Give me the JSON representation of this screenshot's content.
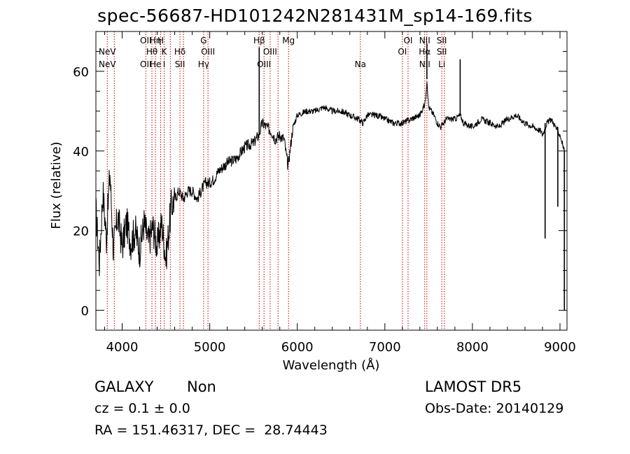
{
  "chart_data": {
    "type": "line",
    "title": "spec-56687-HD101242N281431M_sp14-169.fits",
    "xlabel": "Wavelength (Å)",
    "ylabel": "Flux (relative)",
    "xlim": [
      3700,
      9080
    ],
    "ylim": [
      -5,
      70
    ],
    "xticks": [
      4000,
      5000,
      6000,
      7000,
      8000,
      9000
    ],
    "yticks": [
      0,
      20,
      40,
      60
    ],
    "grid": false,
    "series": [
      {
        "color": "#000000",
        "points": [
          [
            3700,
            25
          ],
          [
            3740,
            12
          ],
          [
            3780,
            30
          ],
          [
            3820,
            18
          ],
          [
            3860,
            35
          ],
          [
            3900,
            15
          ],
          [
            3950,
            24
          ],
          [
            4000,
            16
          ],
          [
            4050,
            22
          ],
          [
            4100,
            17
          ],
          [
            4150,
            20
          ],
          [
            4200,
            15
          ],
          [
            4250,
            22
          ],
          [
            4300,
            17
          ],
          [
            4350,
            21
          ],
          [
            4400,
            16
          ],
          [
            4450,
            22
          ],
          [
            4500,
            13
          ],
          [
            4560,
            26
          ],
          [
            4600,
            28
          ],
          [
            4650,
            30
          ],
          [
            4700,
            28
          ],
          [
            4750,
            30
          ],
          [
            4800,
            30
          ],
          [
            4860,
            28
          ],
          [
            4900,
            30
          ],
          [
            4950,
            32
          ],
          [
            5000,
            32
          ],
          [
            5050,
            33
          ],
          [
            5100,
            35
          ],
          [
            5200,
            37
          ],
          [
            5300,
            38
          ],
          [
            5400,
            41
          ],
          [
            5500,
            42
          ],
          [
            5560,
            44
          ],
          [
            5600,
            47
          ],
          [
            5650,
            46
          ],
          [
            5700,
            45
          ],
          [
            5750,
            43
          ],
          [
            5800,
            44
          ],
          [
            5850,
            43
          ],
          [
            5893,
            36
          ],
          [
            5950,
            46
          ],
          [
            6000,
            49
          ],
          [
            6100,
            50
          ],
          [
            6200,
            50
          ],
          [
            6300,
            51
          ],
          [
            6400,
            50
          ],
          [
            6500,
            50
          ],
          [
            6600,
            49
          ],
          [
            6700,
            48
          ],
          [
            6750,
            47
          ],
          [
            6800,
            49
          ],
          [
            6900,
            49
          ],
          [
            7000,
            48
          ],
          [
            7100,
            47
          ],
          [
            7200,
            47
          ],
          [
            7300,
            48
          ],
          [
            7400,
            49
          ],
          [
            7460,
            52
          ],
          [
            7480,
            58
          ],
          [
            7500,
            51
          ],
          [
            7560,
            49
          ],
          [
            7600,
            47
          ],
          [
            7640,
            46
          ],
          [
            7700,
            48
          ],
          [
            7750,
            48
          ],
          [
            7800,
            48
          ],
          [
            7860,
            49
          ],
          [
            7900,
            47
          ],
          [
            8000,
            46
          ],
          [
            8100,
            48
          ],
          [
            8200,
            47
          ],
          [
            8300,
            46
          ],
          [
            8400,
            48
          ],
          [
            8500,
            49
          ],
          [
            8600,
            47
          ],
          [
            8700,
            46
          ],
          [
            8780,
            45
          ],
          [
            8800,
            44
          ],
          [
            8850,
            47
          ],
          [
            8900,
            48
          ],
          [
            8950,
            46
          ],
          [
            9000,
            44
          ],
          [
            9050,
            40
          ]
        ]
      }
    ],
    "spikes": [
      {
        "x": 5565,
        "y": 66
      },
      {
        "x": 7480,
        "y": 67
      },
      {
        "x": 7860,
        "y": 63
      },
      {
        "x": 8830,
        "y": 18
      },
      {
        "x": 8975,
        "y": 26
      },
      {
        "x": 9050,
        "y": 0
      }
    ],
    "line_markers": [
      {
        "x": 3830,
        "labels": [
          "NeV",
          "NeV"
        ],
        "rows": [
          1,
          2
        ]
      },
      {
        "x": 3910,
        "labels": [],
        "rows": []
      },
      {
        "x": 4270,
        "labels": [
          "OII",
          "OII"
        ],
        "rows": [
          0,
          2
        ]
      },
      {
        "x": 4340,
        "labels": [
          "Hθ"
        ],
        "rows": [
          1
        ]
      },
      {
        "x": 4380,
        "labels": [
          "Hη",
          "He"
        ],
        "rows": [
          0,
          2
        ]
      },
      {
        "x": 4440,
        "labels": [
          "H"
        ],
        "rows": [
          0
        ]
      },
      {
        "x": 4480,
        "labels": [
          "K",
          "I"
        ],
        "rows": [
          1,
          2
        ]
      },
      {
        "x": 4550,
        "labels": [],
        "rows": []
      },
      {
        "x": 4660,
        "labels": [
          "Hδ",
          "SII"
        ],
        "rows": [
          1,
          2
        ]
      },
      {
        "x": 4700,
        "labels": [],
        "rows": []
      },
      {
        "x": 4930,
        "labels": [
          "G",
          "Hγ"
        ],
        "rows": [
          0,
          2
        ]
      },
      {
        "x": 4980,
        "labels": [
          "OIII"
        ],
        "rows": [
          1
        ]
      },
      {
        "x": 5565,
        "labels": [
          "Hβ"
        ],
        "rows": [
          0
        ]
      },
      {
        "x": 5620,
        "labels": [
          "OIII"
        ],
        "rows": [
          2
        ]
      },
      {
        "x": 5690,
        "labels": [
          "OIII"
        ],
        "rows": [
          1
        ]
      },
      {
        "x": 5780,
        "labels": [],
        "rows": []
      },
      {
        "x": 5900,
        "labels": [
          "Mg"
        ],
        "rows": [
          0
        ]
      },
      {
        "x": 6720,
        "labels": [
          "Na"
        ],
        "rows": [
          2
        ]
      },
      {
        "x": 7200,
        "labels": [
          "OI"
        ],
        "rows": [
          1
        ]
      },
      {
        "x": 7265,
        "labels": [
          "OI"
        ],
        "rows": [
          0
        ]
      },
      {
        "x": 7455,
        "labels": [
          "NII",
          "Hα",
          "NII"
        ],
        "rows": [
          0,
          1,
          2
        ]
      },
      {
        "x": 7480,
        "labels": [],
        "rows": []
      },
      {
        "x": 7650,
        "labels": [
          "SII",
          "SII",
          "Li"
        ],
        "rows": [
          0,
          1,
          2
        ]
      },
      {
        "x": 7680,
        "labels": [],
        "rows": []
      }
    ]
  },
  "info": {
    "class_label": "GALAXY",
    "subclass_label": "Non",
    "cz_text": "cz = 0.1 ± 0.0",
    "coords_text": "RA = 151.46317, DEC =  28.74443",
    "survey_label": "LAMOST DR5",
    "obs_date_text": "Obs-Date: 20140129"
  }
}
